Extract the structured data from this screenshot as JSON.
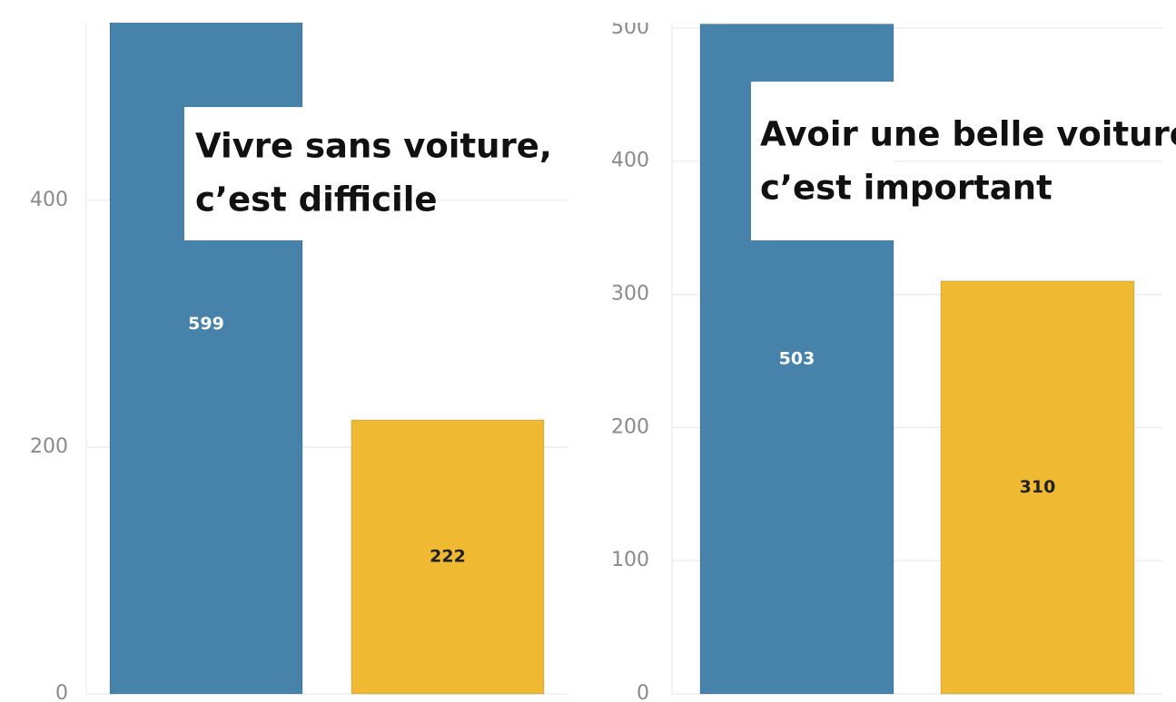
{
  "chart_data": [
    {
      "type": "bar",
      "annotation": [
        "Vivre sans voiture,",
        "c’est difficile"
      ],
      "categories": [
        null,
        null
      ],
      "values": [
        599,
        222
      ],
      "colors": [
        "#4682a9",
        "#f0b932"
      ],
      "ylim": [
        0,
        544
      ],
      "yticks": [
        0,
        200,
        400
      ],
      "grid": true
    },
    {
      "type": "bar",
      "annotation": [
        "Avoir une belle voiture",
        "c’est important"
      ],
      "categories": [
        null,
        null
      ],
      "values": [
        503,
        310
      ],
      "colors": [
        "#4682a9",
        "#f0b932"
      ],
      "ylim": [
        0,
        502
      ],
      "yticks": [
        0,
        100,
        200,
        300,
        400,
        500
      ],
      "grid": true
    }
  ]
}
